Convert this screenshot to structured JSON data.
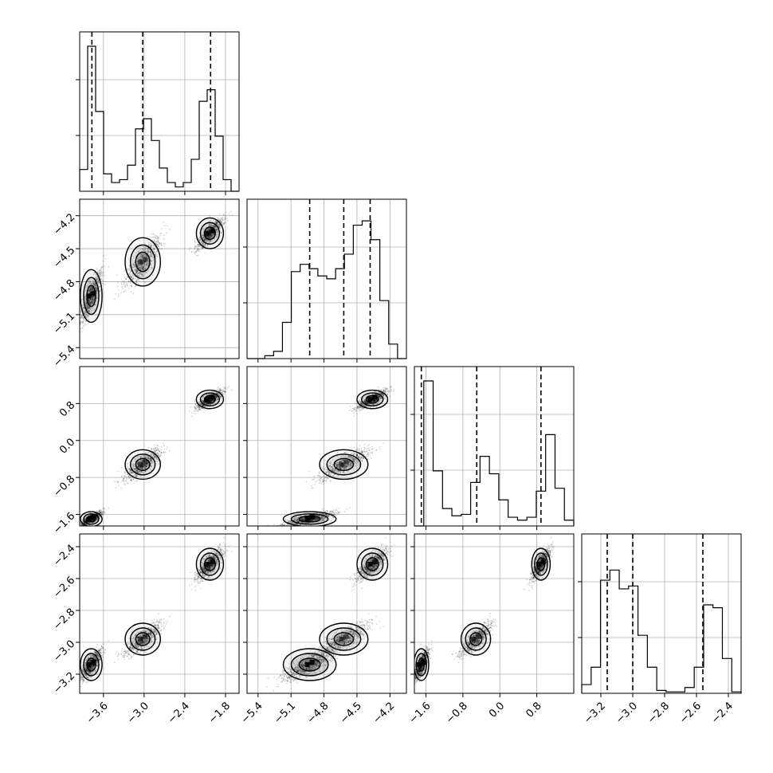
{
  "chart_data": {
    "type": "corner",
    "ndim": 4,
    "grid": true,
    "colors": {
      "points": "#000000",
      "hist": "#000000",
      "contour": "#000000"
    },
    "parameters": [
      {
        "range": [
          -3.95,
          -1.6
        ],
        "ticks": [
          -3.6,
          -3.0,
          -2.4,
          -1.8
        ],
        "tick_labels": [
          "−3.6",
          "−3.0",
          "−2.4",
          "−1.8"
        ]
      },
      {
        "range": [
          -5.5,
          -4.05
        ],
        "ticks": [
          -5.4,
          -5.1,
          -4.8,
          -4.5,
          -4.2
        ],
        "tick_labels": [
          "−5.4",
          "−5.1",
          "−4.8",
          "−4.5",
          "−4.2"
        ]
      },
      {
        "range": [
          -1.85,
          1.6
        ],
        "ticks": [
          -1.6,
          -0.8,
          0.0,
          0.8
        ],
        "tick_labels": [
          "−1.6",
          "−0.8",
          "0.0",
          "0.8"
        ]
      },
      {
        "range": [
          -3.32,
          -2.32
        ],
        "ticks": [
          -3.2,
          -3.0,
          -2.8,
          -2.6,
          -2.4
        ],
        "tick_labels": [
          "−3.2",
          "−3.0",
          "−2.8",
          "−2.6",
          "−2.4"
        ]
      }
    ],
    "quantiles": [
      [
        -3.77,
        -3.02,
        -2.02
      ],
      [
        -4.93,
        -4.62,
        -4.38
      ],
      [
        -1.7,
        -0.5,
        0.89
      ],
      [
        -3.16,
        -3.0,
        -2.56
      ]
    ],
    "histograms": [
      [
        0.15,
        1.0,
        0.55,
        0.12,
        0.06,
        0.08,
        0.18,
        0.43,
        0.5,
        0.35,
        0.16,
        0.06,
        0.03,
        0.06,
        0.22,
        0.62,
        0.7,
        0.38,
        0.08,
        0.0
      ],
      [
        0.0,
        0.0,
        0.02,
        0.05,
        0.25,
        0.6,
        0.65,
        0.62,
        0.57,
        0.55,
        0.62,
        0.72,
        0.92,
        0.95,
        0.82,
        0.4,
        0.1,
        0.0
      ],
      [
        0.0,
        1.0,
        0.38,
        0.12,
        0.07,
        0.08,
        0.3,
        0.48,
        0.36,
        0.18,
        0.06,
        0.04,
        0.06,
        0.24,
        0.63,
        0.26,
        0.04
      ],
      [
        0.06,
        0.18,
        0.78,
        0.85,
        0.72,
        0.74,
        0.4,
        0.18,
        0.02,
        0.01,
        0.01,
        0.04,
        0.18,
        0.61,
        0.59,
        0.24,
        0.01
      ]
    ],
    "clusters": [
      {
        "center": [
          -3.78,
          -4.93,
          -1.7,
          -3.14
        ],
        "sd": [
          0.08,
          0.12,
          0.08,
          0.05
        ],
        "weight": 0.36,
        "darkness": 1.0
      },
      {
        "center": [
          -3.02,
          -4.62,
          -0.52,
          -2.98
        ],
        "sd": [
          0.13,
          0.11,
          0.16,
          0.05
        ],
        "weight": 0.31,
        "darkness": 0.35
      },
      {
        "center": [
          -2.03,
          -4.36,
          0.89,
          -2.51
        ],
        "sd": [
          0.1,
          0.07,
          0.1,
          0.05
        ],
        "weight": 0.33,
        "darkness": 0.85
      }
    ]
  }
}
